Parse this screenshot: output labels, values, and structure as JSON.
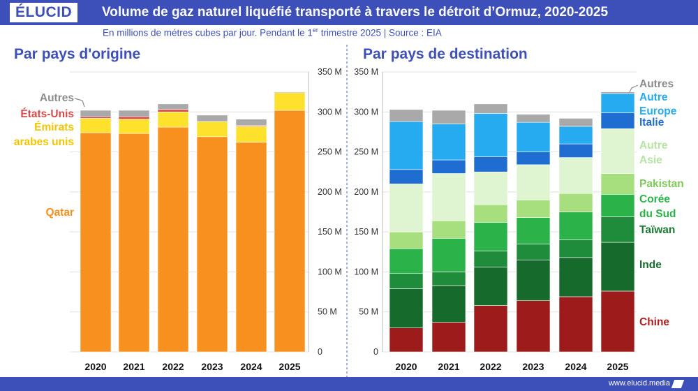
{
  "header": {
    "logo": "ÉLUCID",
    "title": "Volume de gaz naturel liquéfié transporté à travers le détroit d’Ormuz, 2020-2025"
  },
  "subtitle": {
    "before": "En millions de métres cubes par jour. Pendant le 1",
    "sup": "er",
    "after": " trimestre 2025  |  Source : EIA"
  },
  "footer": {
    "site": "www.elucid.media"
  },
  "chart_data": [
    {
      "type": "bar",
      "stacked": true,
      "title": "Par pays d'origine",
      "categories": [
        "2020",
        "2021",
        "2022",
        "2023",
        "2024",
        "2025"
      ],
      "ylim": [
        0,
        350
      ],
      "yticks": [
        0,
        50,
        100,
        150,
        200,
        250,
        300,
        350
      ],
      "ytick_labels": [
        "0",
        "50 M",
        "100 M",
        "150 M",
        "200 M",
        "250 M",
        "300 M",
        "350 M"
      ],
      "grid": true,
      "series": [
        {
          "name": "Qatar",
          "color": "#f7901e",
          "values": [
            274,
            273,
            281,
            269,
            262,
            302
          ]
        },
        {
          "name": "Émirats arabes unis",
          "color": "#fde12d",
          "values": [
            18,
            18,
            19,
            19,
            20,
            22
          ]
        },
        {
          "name": "États-Unis",
          "color": "#d84a4a",
          "values": [
            2,
            3,
            3,
            0,
            1,
            0
          ]
        },
        {
          "name": "Autres",
          "color": "#a9a9a9",
          "values": [
            8,
            8,
            7,
            8,
            8,
            1
          ]
        }
      ],
      "labels": [
        {
          "text": "Autres",
          "color": "#8c8c8c"
        },
        {
          "text": "États-Unis",
          "color": "#d84a4a"
        },
        {
          "text": "Émirats",
          "color": "#f2c500"
        },
        {
          "text": "arabes unis",
          "color": "#f2c500"
        },
        {
          "text": "Qatar",
          "color": "#f7901e"
        }
      ]
    },
    {
      "type": "bar",
      "stacked": true,
      "title": "Par pays de destination",
      "categories": [
        "2020",
        "2021",
        "2022",
        "2023",
        "2024",
        "2025"
      ],
      "ylim": [
        0,
        350
      ],
      "yticks": [
        0,
        50,
        100,
        150,
        200,
        250,
        300,
        350
      ],
      "ytick_labels": [
        "0",
        "50 M",
        "100 M",
        "150 M",
        "200 M",
        "250 M",
        "300 M",
        "350 M"
      ],
      "grid": true,
      "series": [
        {
          "name": "Chine",
          "color": "#9e1b1b",
          "values": [
            30,
            37,
            58,
            64,
            69,
            76
          ]
        },
        {
          "name": "Inde",
          "color": "#166a2b",
          "values": [
            49,
            46,
            48,
            51,
            49,
            61
          ]
        },
        {
          "name": "Taïwan",
          "color": "#1e8c3a",
          "values": [
            19,
            17,
            20,
            20,
            22,
            32
          ]
        },
        {
          "name": "Corée du Sud",
          "color": "#2bb34a",
          "values": [
            31,
            42,
            36,
            33,
            35,
            28
          ]
        },
        {
          "name": "Pakistan",
          "color": "#a8df7e",
          "values": [
            21,
            22,
            22,
            22,
            23,
            26
          ]
        },
        {
          "name": "Autre Asie",
          "color": "#dff5d2",
          "values": [
            60,
            59,
            41,
            44,
            45,
            56
          ]
        },
        {
          "name": "Italie",
          "color": "#1f6dd1",
          "values": [
            18,
            17,
            19,
            16,
            17,
            20
          ]
        },
        {
          "name": "Europe Autre",
          "color": "#26aaf0",
          "values": [
            60,
            45,
            54,
            37,
            22,
            24
          ]
        },
        {
          "name": "Autres",
          "color": "#a9a9a9",
          "values": [
            15,
            17,
            12,
            10,
            10,
            2
          ]
        }
      ],
      "labels": [
        {
          "text": "Autres",
          "color": "#8c8c8c"
        },
        {
          "text": "Autre",
          "color": "#26aaf0"
        },
        {
          "text": "Europe",
          "color": "#26aaf0"
        },
        {
          "text": "Italie",
          "color": "#1f6dd1"
        },
        {
          "text": "Autre",
          "color": "#b7e3a4"
        },
        {
          "text": "Asie",
          "color": "#b7e3a4"
        },
        {
          "text": "Pakistan",
          "color": "#7fc95a"
        },
        {
          "text": "Corée",
          "color": "#2bb34a"
        },
        {
          "text": "du Sud",
          "color": "#2bb34a"
        },
        {
          "text": "Taïwan",
          "color": "#1e7a33"
        },
        {
          "text": "Inde",
          "color": "#166a2b"
        },
        {
          "text": "Chine",
          "color": "#b01e1e"
        }
      ]
    }
  ]
}
